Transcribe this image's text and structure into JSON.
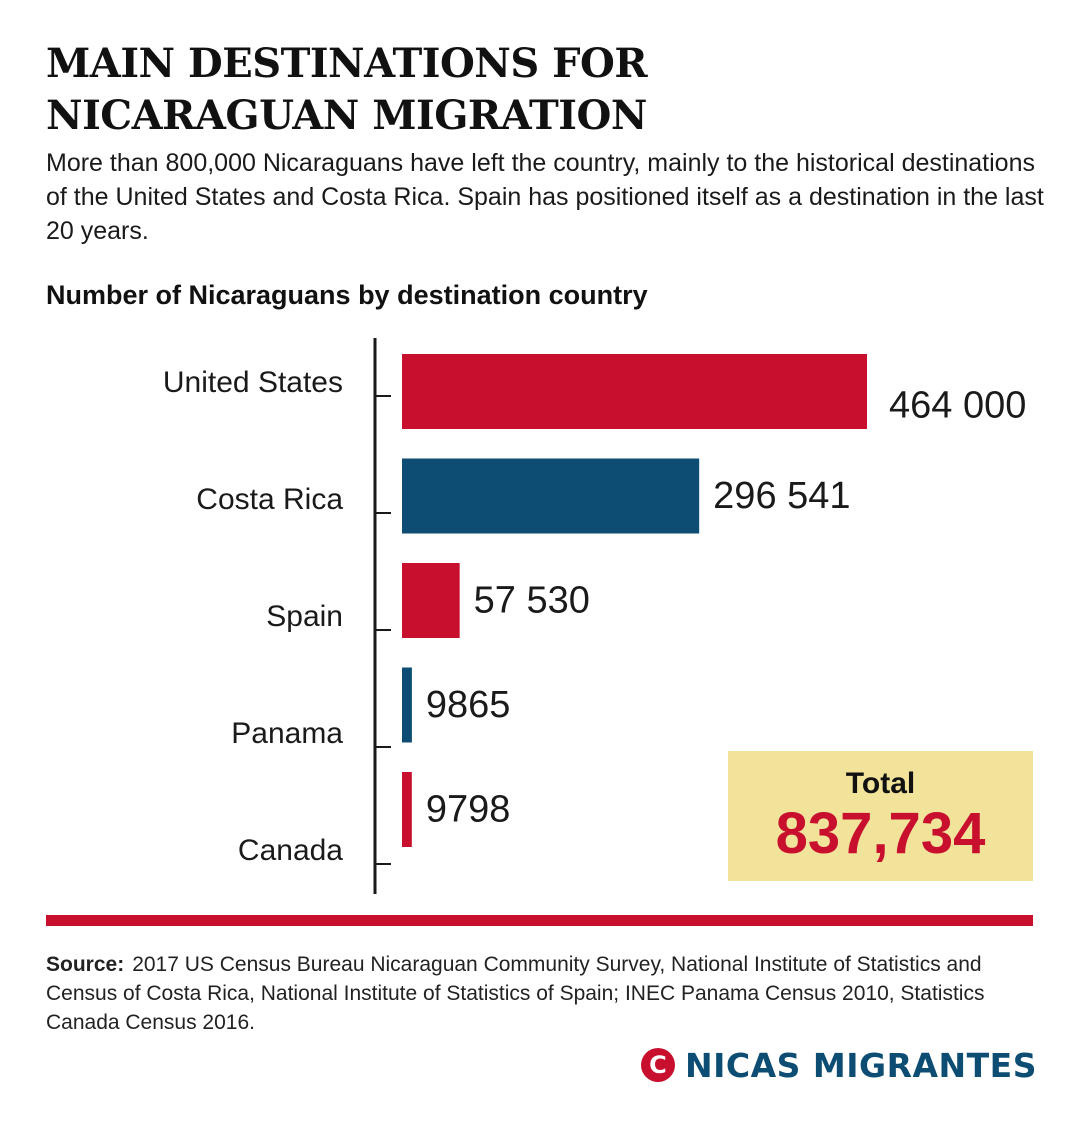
{
  "headline": {
    "line1": "MAIN DESTINATIONS FOR",
    "line2": "NICARAGUAN MIGRATION"
  },
  "intro": "More than 800,000 Nicaraguans have left the country, mainly to the historical destinations of the United States and Costa Rica. Spain has positioned itself as a destination in the last 20 years.",
  "colors": {
    "red": "#c8102e",
    "blue": "#0d4d73",
    "total_bg": "#f2e39b"
  },
  "chart_data": {
    "type": "bar",
    "orientation": "horizontal",
    "title": "Number of Nicaraguans by destination country",
    "categories": [
      "United States",
      "Costa Rica",
      "Spain",
      "Panama",
      "Canada"
    ],
    "values": [
      464000,
      296541,
      57530,
      9865,
      9798
    ],
    "data_labels": [
      "464 000",
      "296 541",
      "57 530",
      "9865",
      "9798"
    ],
    "bar_colors": [
      "#c8102e",
      "#0d4d73",
      "#c8102e",
      "#0d4d73",
      "#c8102e"
    ],
    "xlim": [
      0,
      464000
    ],
    "grid": false,
    "legend": "none"
  },
  "total": {
    "label": "Total",
    "value": "837,734"
  },
  "source": {
    "label": "Source:",
    "text": "2017 US Census Bureau Nicaraguan Community Survey, National Institute of Statistics and Census of Costa Rica, National Institute of Statistics of Spain; INEC Panama Census 2010, Statistics Canada Census 2016."
  },
  "brand": {
    "icon": "C",
    "icon_name": "nicas-migrantes-logo-icon",
    "name": "NICAS MIGRANTES"
  }
}
